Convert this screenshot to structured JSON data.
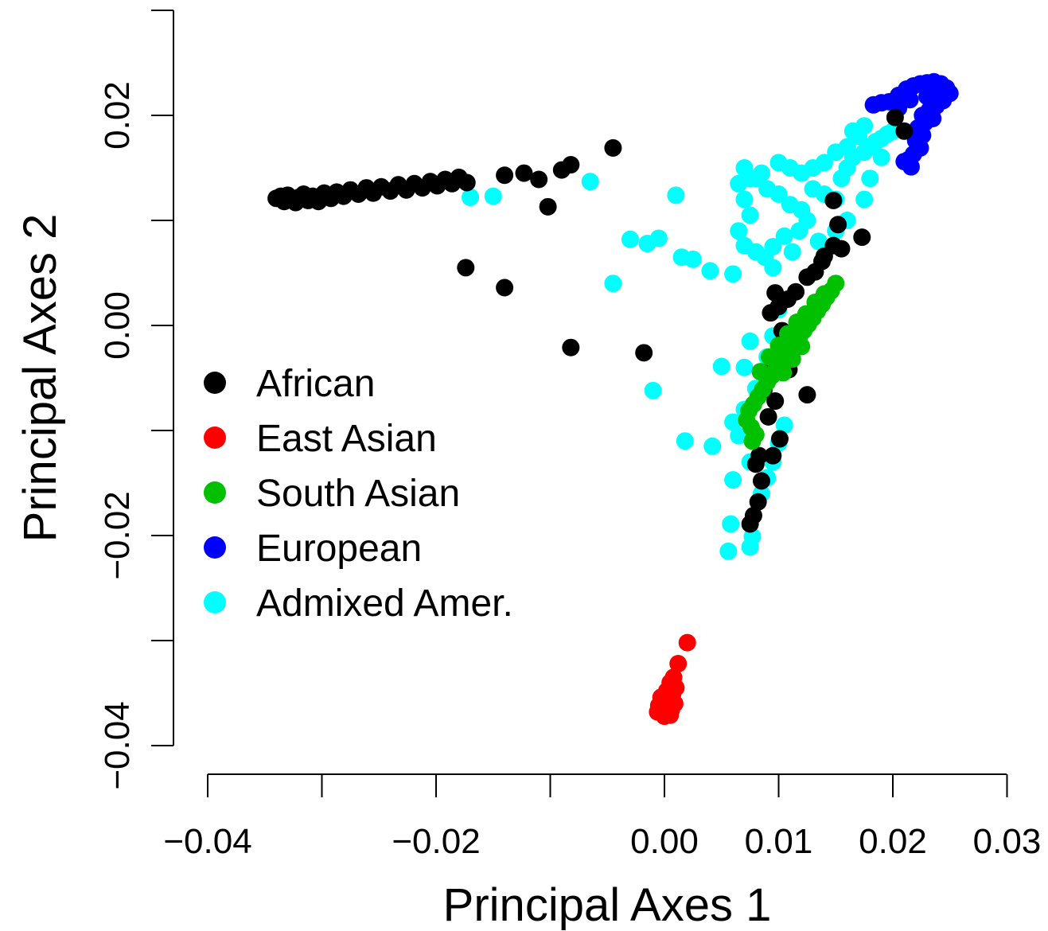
{
  "chart_data": {
    "type": "scatter",
    "title": "",
    "xlabel": "Principal Axes 1",
    "ylabel": "Principal Axes 2",
    "xlim": [
      -0.04,
      0.03
    ],
    "ylim": [
      -0.04,
      0.02
    ],
    "x_ticks": [
      -0.04,
      -0.03,
      -0.02,
      -0.01,
      0.0,
      0.01,
      0.02,
      0.03
    ],
    "x_tick_labels": [
      "−0.04",
      "",
      "−0.02",
      "",
      "0.00",
      "0.01",
      "0.02",
      "0.03"
    ],
    "y_ticks": [
      -0.04,
      -0.03,
      -0.02,
      -0.01,
      0.0,
      0.01,
      0.02,
      0.03
    ],
    "y_tick_labels": [
      "−0.04",
      "",
      "−0.02",
      "",
      "0.00",
      "",
      "0.02",
      ""
    ],
    "grid": false,
    "legend_position": "left",
    "series": [
      {
        "name": "African",
        "color": "#000000",
        "points": [
          [
            -0.034,
            0.0121
          ],
          [
            -0.0336,
            0.0123
          ],
          [
            -0.0333,
            0.0118
          ],
          [
            -0.033,
            0.0124
          ],
          [
            -0.0327,
            0.012
          ],
          [
            -0.0323,
            0.0117
          ],
          [
            -0.032,
            0.0122
          ],
          [
            -0.0316,
            0.0125
          ],
          [
            -0.0312,
            0.0119
          ],
          [
            -0.0308,
            0.0123
          ],
          [
            -0.0303,
            0.0118
          ],
          [
            -0.0298,
            0.0126
          ],
          [
            -0.0292,
            0.0121
          ],
          [
            -0.0287,
            0.0127
          ],
          [
            -0.0281,
            0.0123
          ],
          [
            -0.0275,
            0.0129
          ],
          [
            -0.0268,
            0.0125
          ],
          [
            -0.0261,
            0.0131
          ],
          [
            -0.0255,
            0.0126
          ],
          [
            -0.0248,
            0.0132
          ],
          [
            -0.024,
            0.0128
          ],
          [
            -0.0233,
            0.0134
          ],
          [
            -0.0226,
            0.0129
          ],
          [
            -0.0219,
            0.0135
          ],
          [
            -0.0212,
            0.0131
          ],
          [
            -0.0205,
            0.0137
          ],
          [
            -0.0199,
            0.0133
          ],
          [
            -0.0192,
            0.0139
          ],
          [
            -0.0186,
            0.0135
          ],
          [
            -0.018,
            0.0141
          ],
          [
            -0.0173,
            0.0136
          ],
          [
            -0.014,
            0.0143
          ],
          [
            -0.0123,
            0.0145
          ],
          [
            -0.011,
            0.0139
          ],
          [
            -0.009,
            0.0148
          ],
          [
            -0.0082,
            0.0153
          ],
          [
            -0.0045,
            0.0169
          ],
          [
            -0.0102,
            0.0113
          ],
          [
            -0.0174,
            0.0055
          ],
          [
            -0.014,
            0.0036
          ],
          [
            -0.0082,
            -0.0021
          ],
          [
            -0.0018,
            -0.0026
          ],
          [
            0.0202,
            0.0198
          ],
          [
            0.021,
            0.0185
          ],
          [
            0.0148,
            0.0119
          ],
          [
            0.0152,
            0.0096
          ],
          [
            0.0173,
            0.0084
          ],
          [
            0.0155,
            0.0073
          ],
          [
            0.014,
            0.0066
          ],
          [
            0.0148,
            0.0076
          ],
          [
            0.0138,
            0.0061
          ],
          [
            0.0132,
            0.0051
          ],
          [
            0.0125,
            0.0046
          ],
          [
            0.0115,
            0.0032
          ],
          [
            0.0108,
            0.0025
          ],
          [
            0.01,
            0.0018
          ],
          [
            0.0097,
            0.0031
          ],
          [
            0.0093,
            0.0012
          ],
          [
            0.0103,
            -0.0005
          ],
          [
            0.0107,
            -0.0018
          ],
          [
            0.0096,
            -0.0036
          ],
          [
            0.009,
            -0.0045
          ],
          [
            0.0087,
            -0.0062
          ],
          [
            0.0097,
            -0.0072
          ],
          [
            0.0125,
            -0.0066
          ],
          [
            0.0109,
            -0.0042
          ],
          [
            0.0091,
            -0.0087
          ],
          [
            0.0101,
            -0.0108
          ],
          [
            0.0095,
            -0.0124
          ],
          [
            0.0083,
            -0.0124
          ],
          [
            0.0078,
            -0.0181
          ],
          [
            0.0075,
            -0.0189
          ],
          [
            0.0082,
            -0.0168
          ],
          [
            0.0085,
            -0.0148
          ],
          [
            0.008,
            -0.0132
          ]
        ]
      },
      {
        "name": "East Asian",
        "color": "#ff0000",
        "points": [
          [
            0.002,
            -0.0302
          ],
          [
            0.0012,
            -0.0322
          ],
          [
            0.0008,
            -0.0335
          ],
          [
            0.0005,
            -0.034
          ],
          [
            0.001,
            -0.0345
          ],
          [
            0.0002,
            -0.0348
          ],
          [
            0.0007,
            -0.0352
          ],
          [
            -0.0003,
            -0.0354
          ],
          [
            0.0004,
            -0.0357
          ],
          [
            0.0009,
            -0.036
          ],
          [
            -0.0005,
            -0.0362
          ],
          [
            0.0001,
            -0.0365
          ],
          [
            0.0006,
            -0.0366
          ],
          [
            -0.0002,
            -0.0368
          ],
          [
            0.0003,
            -0.037
          ],
          [
            -0.0006,
            -0.0368
          ],
          [
            0.0,
            -0.0372
          ],
          [
            0.0005,
            -0.0371
          ]
        ]
      },
      {
        "name": "South Asian",
        "color": "#00c000",
        "points": [
          [
            0.015,
            0.004
          ],
          [
            0.0146,
            0.0033
          ],
          [
            0.0142,
            0.0027
          ],
          [
            0.0138,
            0.002
          ],
          [
            0.0134,
            0.0014
          ],
          [
            0.013,
            0.0007
          ],
          [
            0.0126,
            0.0001
          ],
          [
            0.0122,
            -0.0005
          ],
          [
            0.0118,
            -0.0011
          ],
          [
            0.0114,
            -0.0017
          ],
          [
            0.011,
            -0.0023
          ],
          [
            0.0106,
            -0.0029
          ],
          [
            0.0102,
            -0.0035
          ],
          [
            0.0098,
            -0.0041
          ],
          [
            0.0094,
            -0.0048
          ],
          [
            0.009,
            -0.0054
          ],
          [
            0.0086,
            -0.0061
          ],
          [
            0.0082,
            -0.0068
          ],
          [
            0.0078,
            -0.0075
          ],
          [
            0.0074,
            -0.0081
          ],
          [
            0.0072,
            -0.009
          ],
          [
            0.0076,
            -0.0097
          ],
          [
            0.008,
            -0.0104
          ],
          [
            0.0077,
            -0.011
          ],
          [
            0.014,
            0.003
          ],
          [
            0.0132,
            0.0022
          ],
          [
            0.0124,
            0.0011
          ],
          [
            0.0116,
            0.0003
          ],
          [
            0.0108,
            -0.0008
          ],
          [
            0.01,
            -0.0019
          ],
          [
            0.0092,
            -0.003
          ],
          [
            0.0084,
            -0.0044
          ],
          [
            0.012,
            -0.002
          ],
          [
            0.0112,
            -0.0032
          ],
          [
            0.0104,
            -0.0045
          ]
        ]
      },
      {
        "name": "European",
        "color": "#0000ff",
        "points": [
          [
            0.0183,
            0.021
          ],
          [
            0.019,
            0.0212
          ],
          [
            0.0197,
            0.0213
          ],
          [
            0.0205,
            0.0219
          ],
          [
            0.0212,
            0.0225
          ],
          [
            0.0218,
            0.0228
          ],
          [
            0.0224,
            0.023
          ],
          [
            0.023,
            0.0231
          ],
          [
            0.0236,
            0.0232
          ],
          [
            0.0242,
            0.023
          ],
          [
            0.0247,
            0.0226
          ],
          [
            0.025,
            0.0221
          ],
          [
            0.0244,
            0.0214
          ],
          [
            0.0238,
            0.0209
          ],
          [
            0.0232,
            0.0205
          ],
          [
            0.0226,
            0.02
          ],
          [
            0.0228,
            0.0193
          ],
          [
            0.0222,
            0.0188
          ],
          [
            0.0226,
            0.0181
          ],
          [
            0.022,
            0.0176
          ],
          [
            0.0224,
            0.0169
          ],
          [
            0.0218,
            0.0163
          ],
          [
            0.0214,
            0.0158
          ],
          [
            0.0216,
            0.0151
          ],
          [
            0.021,
            0.0156
          ],
          [
            0.023,
            0.0218
          ],
          [
            0.0215,
            0.0215
          ],
          [
            0.024,
            0.0222
          ],
          [
            0.0205,
            0.0207
          ],
          [
            0.0235,
            0.0197
          ]
        ]
      },
      {
        "name": "Admixed Amer.",
        "color": "#00ffff",
        "points": [
          [
            -0.017,
            0.0122
          ],
          [
            -0.015,
            0.0123
          ],
          [
            -0.0065,
            0.0137
          ],
          [
            0.001,
            0.0124
          ],
          [
            -0.003,
            0.0082
          ],
          [
            -0.0015,
            0.0078
          ],
          [
            -0.0005,
            0.0083
          ],
          [
            0.0015,
            0.0065
          ],
          [
            0.0025,
            0.0063
          ],
          [
            0.004,
            0.0052
          ],
          [
            -0.0045,
            0.004
          ],
          [
            0.006,
            0.0049
          ],
          [
            -0.001,
            -0.0062
          ],
          [
            0.005,
            -0.0039
          ],
          [
            0.007,
            -0.004
          ],
          [
            0.0018,
            -0.011
          ],
          [
            0.0042,
            -0.0115
          ],
          [
            0.006,
            -0.0092
          ],
          [
            0.0075,
            -0.0015
          ],
          [
            0.008,
            -0.006
          ],
          [
            0.006,
            -0.0147
          ],
          [
            0.0058,
            -0.0189
          ],
          [
            0.0056,
            -0.0215
          ],
          [
            0.0075,
            -0.0211
          ],
          [
            0.0077,
            -0.0201
          ],
          [
            0.0085,
            -0.016
          ],
          [
            0.009,
            -0.0145
          ],
          [
            0.0095,
            -0.013
          ],
          [
            0.01,
            -0.0112
          ],
          [
            0.0105,
            -0.0095
          ],
          [
            0.0075,
            -0.013
          ],
          [
            0.0065,
            -0.0105
          ],
          [
            0.007,
            -0.008
          ],
          [
            0.009,
            -0.003
          ],
          [
            0.0095,
            -0.001
          ],
          [
            0.01,
            0.0015
          ],
          [
            0.0095,
            0.0055
          ],
          [
            0.0088,
            0.0065
          ],
          [
            0.008,
            0.007
          ],
          [
            0.007,
            0.0076
          ],
          [
            0.0065,
            0.009
          ],
          [
            0.0075,
            0.0105
          ],
          [
            0.007,
            0.012
          ],
          [
            0.0065,
            0.0135
          ],
          [
            0.007,
            0.015
          ],
          [
            0.008,
            0.014
          ],
          [
            0.009,
            0.013
          ],
          [
            0.01,
            0.0125
          ],
          [
            0.011,
            0.0115
          ],
          [
            0.012,
            0.011
          ],
          [
            0.0125,
            0.01
          ],
          [
            0.0118,
            0.009
          ],
          [
            0.0105,
            0.0085
          ],
          [
            0.0095,
            0.0075
          ],
          [
            0.013,
            0.013
          ],
          [
            0.014,
            0.0125
          ],
          [
            0.015,
            0.012
          ],
          [
            0.0155,
            0.014
          ],
          [
            0.016,
            0.015
          ],
          [
            0.0165,
            0.016
          ],
          [
            0.0175,
            0.0165
          ],
          [
            0.018,
            0.017
          ],
          [
            0.0185,
            0.0175
          ],
          [
            0.019,
            0.0178
          ],
          [
            0.0195,
            0.0182
          ],
          [
            0.02,
            0.0185
          ],
          [
            0.017,
            0.018
          ],
          [
            0.016,
            0.017
          ],
          [
            0.015,
            0.0165
          ],
          [
            0.014,
            0.0155
          ],
          [
            0.013,
            0.015
          ],
          [
            0.012,
            0.0145
          ],
          [
            0.011,
            0.015
          ],
          [
            0.01,
            0.0155
          ],
          [
            0.0085,
            0.0145
          ],
          [
            0.0075,
            0.014
          ],
          [
            0.0175,
            0.019
          ],
          [
            0.0165,
            0.0185
          ],
          [
            0.019,
            0.016
          ],
          [
            0.018,
            0.014
          ],
          [
            0.0175,
            0.012
          ],
          [
            0.016,
            0.01
          ],
          [
            0.015,
            0.009
          ],
          [
            0.0135,
            0.008
          ],
          [
            0.0112,
            0.007
          ]
        ]
      }
    ]
  }
}
